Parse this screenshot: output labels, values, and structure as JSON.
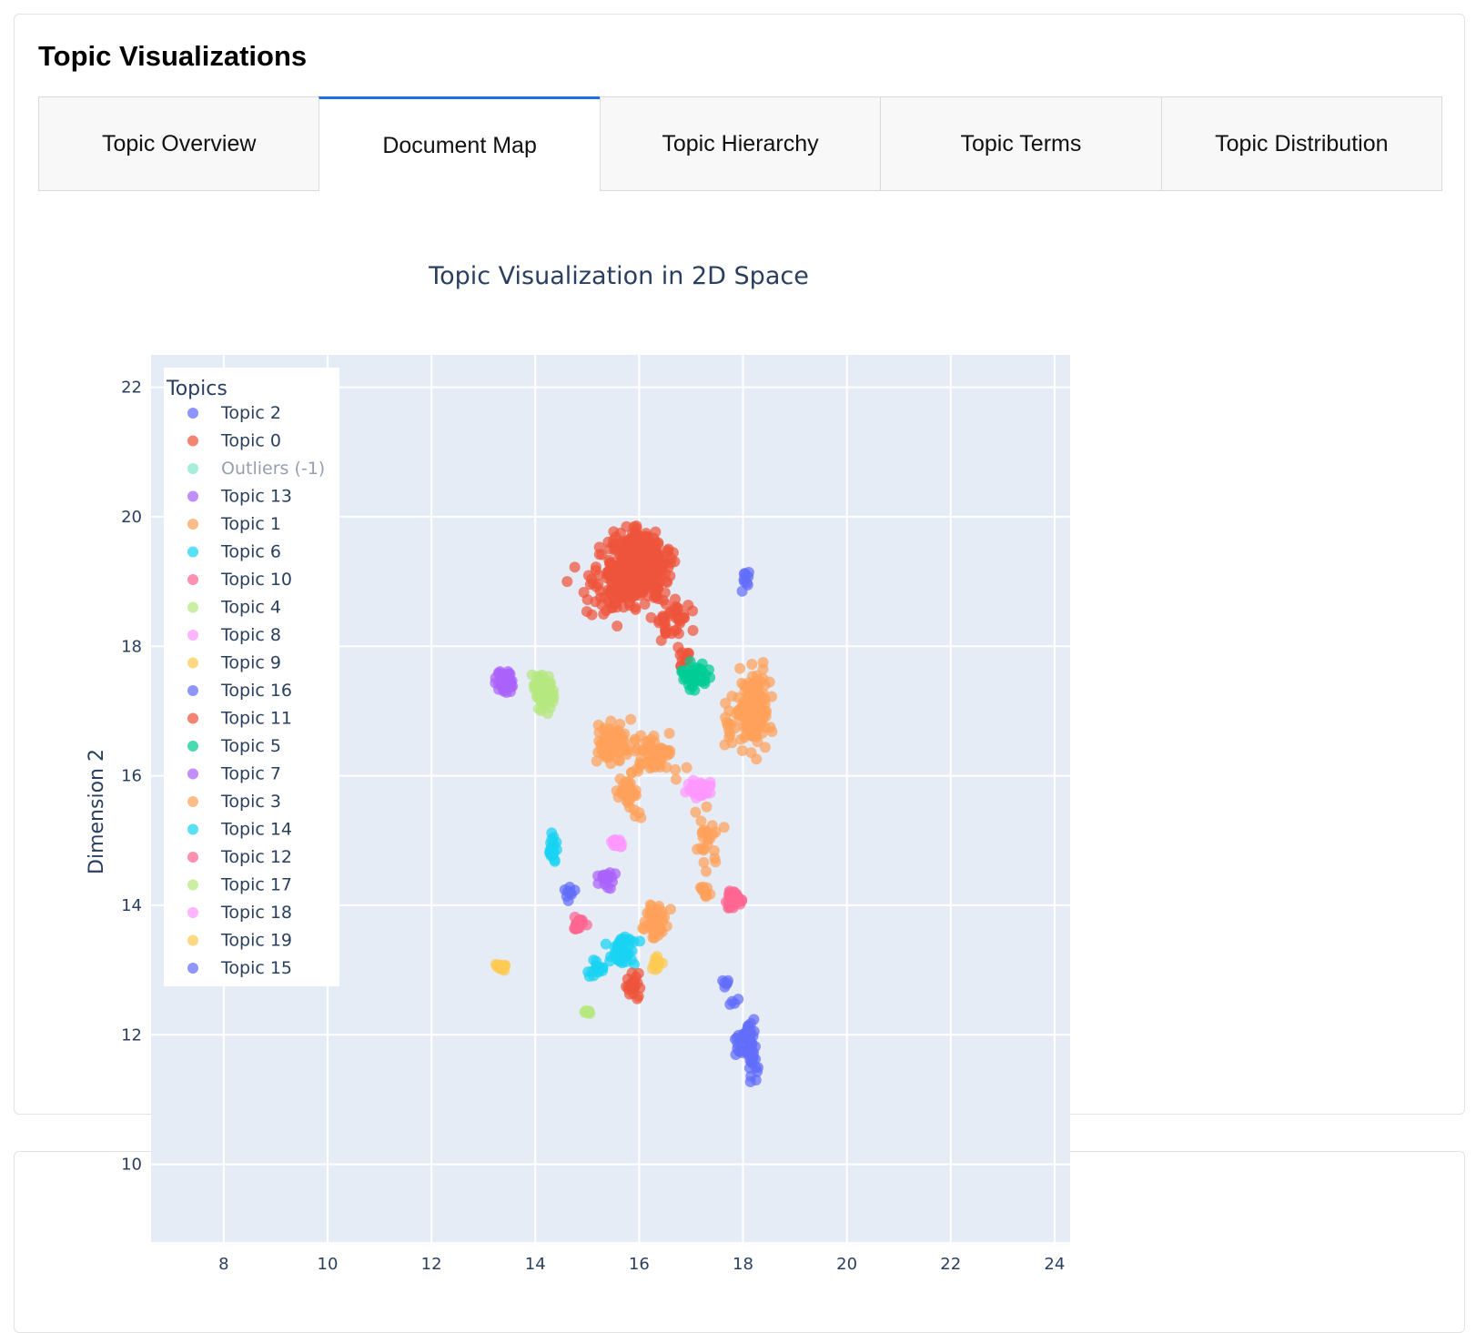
{
  "section_title": "Topic Visualizations",
  "tabs": [
    {
      "label": "Topic Overview",
      "active": false
    },
    {
      "label": "Document Map",
      "active": true
    },
    {
      "label": "Topic Hierarchy",
      "active": false
    },
    {
      "label": "Topic Terms",
      "active": false
    },
    {
      "label": "Topic Distribution",
      "active": false
    }
  ],
  "colors": {
    "accent": "#1a6ee8",
    "plot_bg": "#e5ecf6",
    "text": "#2a3f5f"
  },
  "chart_data": {
    "type": "scatter",
    "title": "Topic Visualization in 2D Space",
    "xlabel": "",
    "ylabel": "Dimension 2",
    "xlim": [
      6.6,
      24.3
    ],
    "ylim": [
      8.8,
      22.5
    ],
    "xticks": [
      8,
      10,
      12,
      14,
      16,
      18,
      20,
      22,
      24
    ],
    "yticks": [
      10,
      12,
      14,
      16,
      18,
      20,
      22
    ],
    "grid": true,
    "legend_title": "Topics",
    "legend_position": "top-left",
    "series": [
      {
        "name": "Topic 2",
        "color": "#636efa",
        "visible": true,
        "clusters": [
          {
            "x": 18.15,
            "y": 11.75,
            "sx": 0.1,
            "sy": 0.4,
            "n": 45
          },
          {
            "x": 18.05,
            "y": 19.0,
            "sx": 0.08,
            "sy": 0.12,
            "n": 10
          },
          {
            "x": 17.95,
            "y": 11.85,
            "sx": 0.15,
            "sy": 0.25,
            "n": 15
          }
        ]
      },
      {
        "name": "Topic 0",
        "color": "#ef553b",
        "visible": true,
        "clusters": [
          {
            "x": 16.0,
            "y": 19.25,
            "sx": 0.45,
            "sy": 0.4,
            "n": 450
          },
          {
            "x": 15.5,
            "y": 18.9,
            "sx": 0.5,
            "sy": 0.45,
            "n": 80
          },
          {
            "x": 16.7,
            "y": 18.4,
            "sx": 0.3,
            "sy": 0.3,
            "n": 40
          },
          {
            "x": 16.85,
            "y": 17.95,
            "sx": 0.08,
            "sy": 0.2,
            "n": 12
          }
        ]
      },
      {
        "name": "Outliers (-1)",
        "color": "#00cc96",
        "visible": false,
        "clusters": []
      },
      {
        "name": "Topic 13",
        "color": "#ab63fa",
        "visible": true,
        "clusters": [
          {
            "x": 13.4,
            "y": 17.45,
            "sx": 0.15,
            "sy": 0.12,
            "n": 45
          }
        ]
      },
      {
        "name": "Topic 1",
        "color": "#ffa15a",
        "visible": true,
        "clusters": [
          {
            "x": 18.2,
            "y": 17.0,
            "sx": 0.2,
            "sy": 0.45,
            "n": 170
          },
          {
            "x": 17.75,
            "y": 16.8,
            "sx": 0.12,
            "sy": 0.3,
            "n": 15
          }
        ]
      },
      {
        "name": "Topic 6",
        "color": "#19d3f3",
        "visible": true,
        "clusters": [
          {
            "x": 15.7,
            "y": 13.3,
            "sx": 0.2,
            "sy": 0.18,
            "n": 45
          },
          {
            "x": 15.2,
            "y": 13.0,
            "sx": 0.15,
            "sy": 0.12,
            "n": 15
          }
        ]
      },
      {
        "name": "Topic 10",
        "color": "#ff6692",
        "visible": true,
        "clusters": [
          {
            "x": 17.8,
            "y": 14.1,
            "sx": 0.12,
            "sy": 0.12,
            "n": 35
          }
        ]
      },
      {
        "name": "Topic 4",
        "color": "#b6e880",
        "visible": true,
        "clusters": [
          {
            "x": 14.15,
            "y": 17.3,
            "sx": 0.18,
            "sy": 0.25,
            "n": 60
          }
        ]
      },
      {
        "name": "Topic 8",
        "color": "#ff97ff",
        "visible": true,
        "clusters": [
          {
            "x": 17.15,
            "y": 15.8,
            "sx": 0.2,
            "sy": 0.12,
            "n": 35
          }
        ]
      },
      {
        "name": "Topic 9",
        "color": "#fecb52",
        "visible": true,
        "clusters": [
          {
            "x": 16.35,
            "y": 13.1,
            "sx": 0.12,
            "sy": 0.08,
            "n": 12
          }
        ]
      },
      {
        "name": "Topic 16",
        "color": "#636efa",
        "visible": true,
        "clusters": [
          {
            "x": 14.65,
            "y": 14.2,
            "sx": 0.1,
            "sy": 0.08,
            "n": 10
          },
          {
            "x": 17.65,
            "y": 12.8,
            "sx": 0.05,
            "sy": 0.05,
            "n": 6
          }
        ]
      },
      {
        "name": "Topic 11",
        "color": "#ef553b",
        "visible": true,
        "clusters": [
          {
            "x": 15.9,
            "y": 12.75,
            "sx": 0.12,
            "sy": 0.15,
            "n": 22
          }
        ]
      },
      {
        "name": "Topic 5",
        "color": "#00cc96",
        "visible": true,
        "clusters": [
          {
            "x": 17.05,
            "y": 17.55,
            "sx": 0.2,
            "sy": 0.15,
            "n": 50
          }
        ]
      },
      {
        "name": "Topic 7",
        "color": "#ab63fa",
        "visible": true,
        "clusters": [
          {
            "x": 15.4,
            "y": 14.4,
            "sx": 0.18,
            "sy": 0.15,
            "n": 18
          }
        ]
      },
      {
        "name": "Topic 3",
        "color": "#ffa15a",
        "visible": true,
        "clusters": [
          {
            "x": 15.5,
            "y": 16.5,
            "sx": 0.25,
            "sy": 0.25,
            "n": 80
          },
          {
            "x": 16.3,
            "y": 16.3,
            "sx": 0.45,
            "sy": 0.25,
            "n": 60
          },
          {
            "x": 15.8,
            "y": 15.7,
            "sx": 0.2,
            "sy": 0.3,
            "n": 35
          },
          {
            "x": 17.3,
            "y": 15.0,
            "sx": 0.25,
            "sy": 0.4,
            "n": 25
          },
          {
            "x": 16.35,
            "y": 13.75,
            "sx": 0.18,
            "sy": 0.25,
            "n": 45
          },
          {
            "x": 17.25,
            "y": 14.2,
            "sx": 0.1,
            "sy": 0.1,
            "n": 12
          }
        ]
      },
      {
        "name": "Topic 14",
        "color": "#19d3f3",
        "visible": true,
        "clusters": [
          {
            "x": 14.35,
            "y": 14.85,
            "sx": 0.07,
            "sy": 0.2,
            "n": 22
          }
        ]
      },
      {
        "name": "Topic 12",
        "color": "#ff6692",
        "visible": true,
        "clusters": [
          {
            "x": 14.85,
            "y": 13.7,
            "sx": 0.12,
            "sy": 0.1,
            "n": 20
          }
        ]
      },
      {
        "name": "Topic 17",
        "color": "#b6e880",
        "visible": true,
        "clusters": [
          {
            "x": 15.0,
            "y": 12.35,
            "sx": 0.06,
            "sy": 0.04,
            "n": 8
          }
        ]
      },
      {
        "name": "Topic 18",
        "color": "#ff97ff",
        "visible": true,
        "clusters": [
          {
            "x": 15.6,
            "y": 14.95,
            "sx": 0.12,
            "sy": 0.08,
            "n": 15
          }
        ]
      },
      {
        "name": "Topic 19",
        "color": "#fecb52",
        "visible": true,
        "clusters": [
          {
            "x": 13.35,
            "y": 13.05,
            "sx": 0.1,
            "sy": 0.06,
            "n": 14
          }
        ]
      },
      {
        "name": "Topic 15",
        "color": "#636efa",
        "visible": true,
        "clusters": [
          {
            "x": 17.8,
            "y": 12.5,
            "sx": 0.1,
            "sy": 0.1,
            "n": 4
          }
        ]
      }
    ]
  }
}
